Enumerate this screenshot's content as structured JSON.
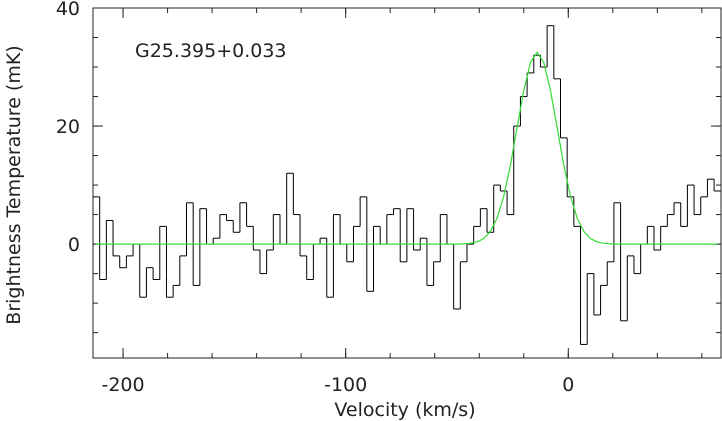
{
  "chart_data": {
    "type": "step",
    "annotation": "G25.395+0.033",
    "xlabel": "Velocity (km/s)",
    "ylabel": "Brightness Temperature (mK)",
    "xlim": [
      -213.5,
      68.6
    ],
    "ylim": [
      -19.3,
      40
    ],
    "xticks": [
      -200,
      -100,
      0
    ],
    "yticks": [
      0,
      20,
      40
    ],
    "x": [
      -212,
      -209,
      -206,
      -203,
      -200,
      -197,
      -194,
      -191,
      -188,
      -185,
      -182,
      -179,
      -176,
      -173,
      -170,
      -167,
      -164,
      -161,
      -158,
      -155,
      -152,
      -149,
      -146,
      -143,
      -140,
      -137,
      -134,
      -131,
      -128,
      -125,
      -122,
      -119,
      -116,
      -113,
      -110,
      -107,
      -104,
      -101,
      -98,
      -95,
      -92,
      -89,
      -86,
      -83,
      -80,
      -77,
      -74,
      -71,
      -68,
      -65,
      -62,
      -59,
      -56,
      -53,
      -50,
      -47,
      -44,
      -41,
      -38,
      -35,
      -32,
      -29,
      -26,
      -23,
      -20,
      -17,
      -14,
      -11,
      -8,
      -5,
      -2,
      1,
      4,
      7,
      10,
      13,
      16,
      19,
      22,
      25,
      28,
      31,
      34,
      37,
      40,
      43,
      46,
      49,
      52,
      55,
      58,
      61,
      64,
      67
    ],
    "series": [
      {
        "color": "#000000",
        "style": "step",
        "values": [
          8,
          -6,
          4,
          -2,
          -4,
          -2,
          0,
          -9,
          -4,
          -6,
          3,
          -9,
          -7,
          -2,
          7,
          -7,
          6,
          0,
          1,
          5,
          4,
          2,
          7,
          3,
          -1,
          -5,
          -1,
          5,
          0,
          12,
          5,
          -2,
          -6,
          0,
          1,
          -9,
          5,
          0,
          -3,
          3,
          8,
          -8,
          3,
          0,
          5,
          6,
          -3,
          6,
          -1,
          1,
          -7,
          -3,
          5,
          0,
          -11,
          -3,
          0,
          3,
          6,
          2,
          10,
          9,
          5,
          20,
          25,
          29,
          32,
          30,
          37,
          28,
          18,
          8,
          3,
          -17,
          -5,
          -12,
          -7,
          -3,
          7,
          -13,
          -2,
          -5,
          0,
          3,
          -1,
          3,
          5,
          7,
          3,
          10,
          5,
          8,
          11,
          9
        ]
      },
      {
        "color": "#33dd33",
        "style": "line",
        "values": [
          0,
          0,
          0,
          0,
          0,
          0,
          0,
          0,
          0,
          0,
          0,
          0,
          0,
          0,
          0,
          0,
          0,
          0,
          0,
          0,
          0,
          0,
          0,
          0,
          0,
          0,
          0,
          0,
          0,
          0,
          0,
          0,
          0,
          0,
          0,
          0,
          0,
          0,
          0,
          0,
          0,
          0,
          0,
          0,
          0,
          0,
          0,
          0,
          0,
          0,
          0,
          0,
          0,
          0,
          0,
          0.04,
          0.13,
          0.36,
          0.93,
          2.14,
          4.4,
          8.1,
          13.36,
          19.71,
          26.03,
          30.74,
          32.5,
          30.74,
          26.03,
          19.71,
          13.36,
          8.1,
          4.4,
          2.14,
          0.93,
          0.36,
          0.13,
          0.04,
          0,
          0,
          0,
          0,
          0,
          0,
          0,
          0,
          0,
          0,
          0,
          0,
          0,
          0,
          0,
          0
        ]
      }
    ]
  }
}
